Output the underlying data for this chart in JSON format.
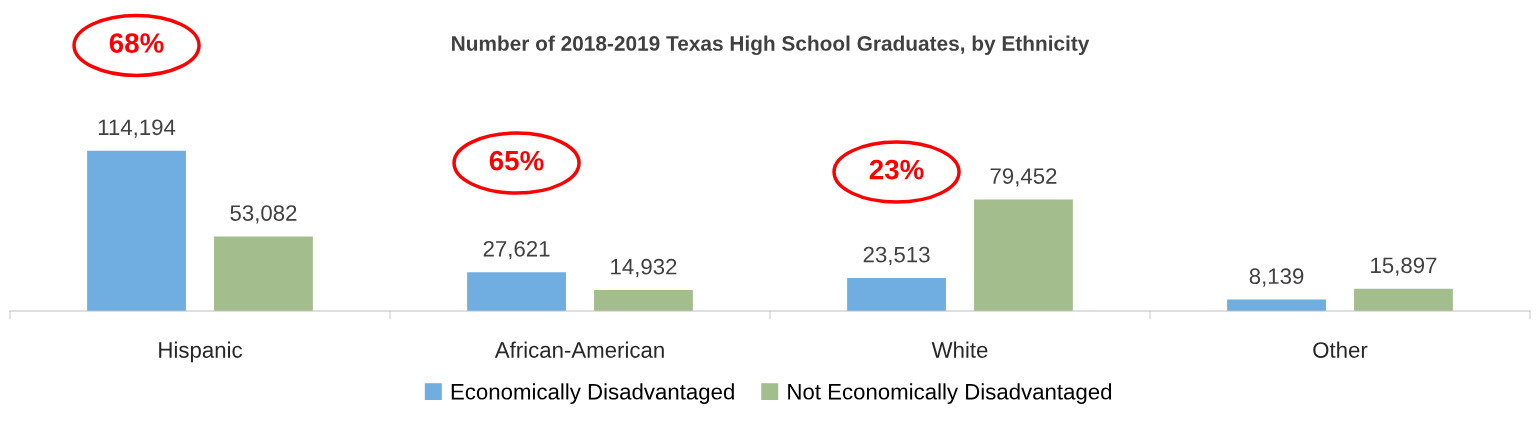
{
  "chart_data": {
    "type": "bar",
    "title": "Number of 2018-2019 Texas High School Graduates, by Ethnicity",
    "categories": [
      "Hispanic",
      "African-American",
      "White",
      "Other"
    ],
    "series": [
      {
        "name": "Economically Disadvantaged",
        "color": "#70ade0",
        "values": [
          114194,
          27621,
          23513,
          8139
        ],
        "value_labels": [
          "114,194",
          "27,621",
          "23,513",
          "8,139"
        ]
      },
      {
        "name": "Not Economically Disadvantaged",
        "color": "#a3bd8c",
        "values": [
          53082,
          14932,
          79452,
          15897
        ],
        "value_labels": [
          "53,082",
          "14,932",
          "79,452",
          "15,897"
        ]
      }
    ],
    "legend": "bottom",
    "grid": false,
    "annotations": [
      "68%",
      "65%",
      "23%"
    ]
  }
}
